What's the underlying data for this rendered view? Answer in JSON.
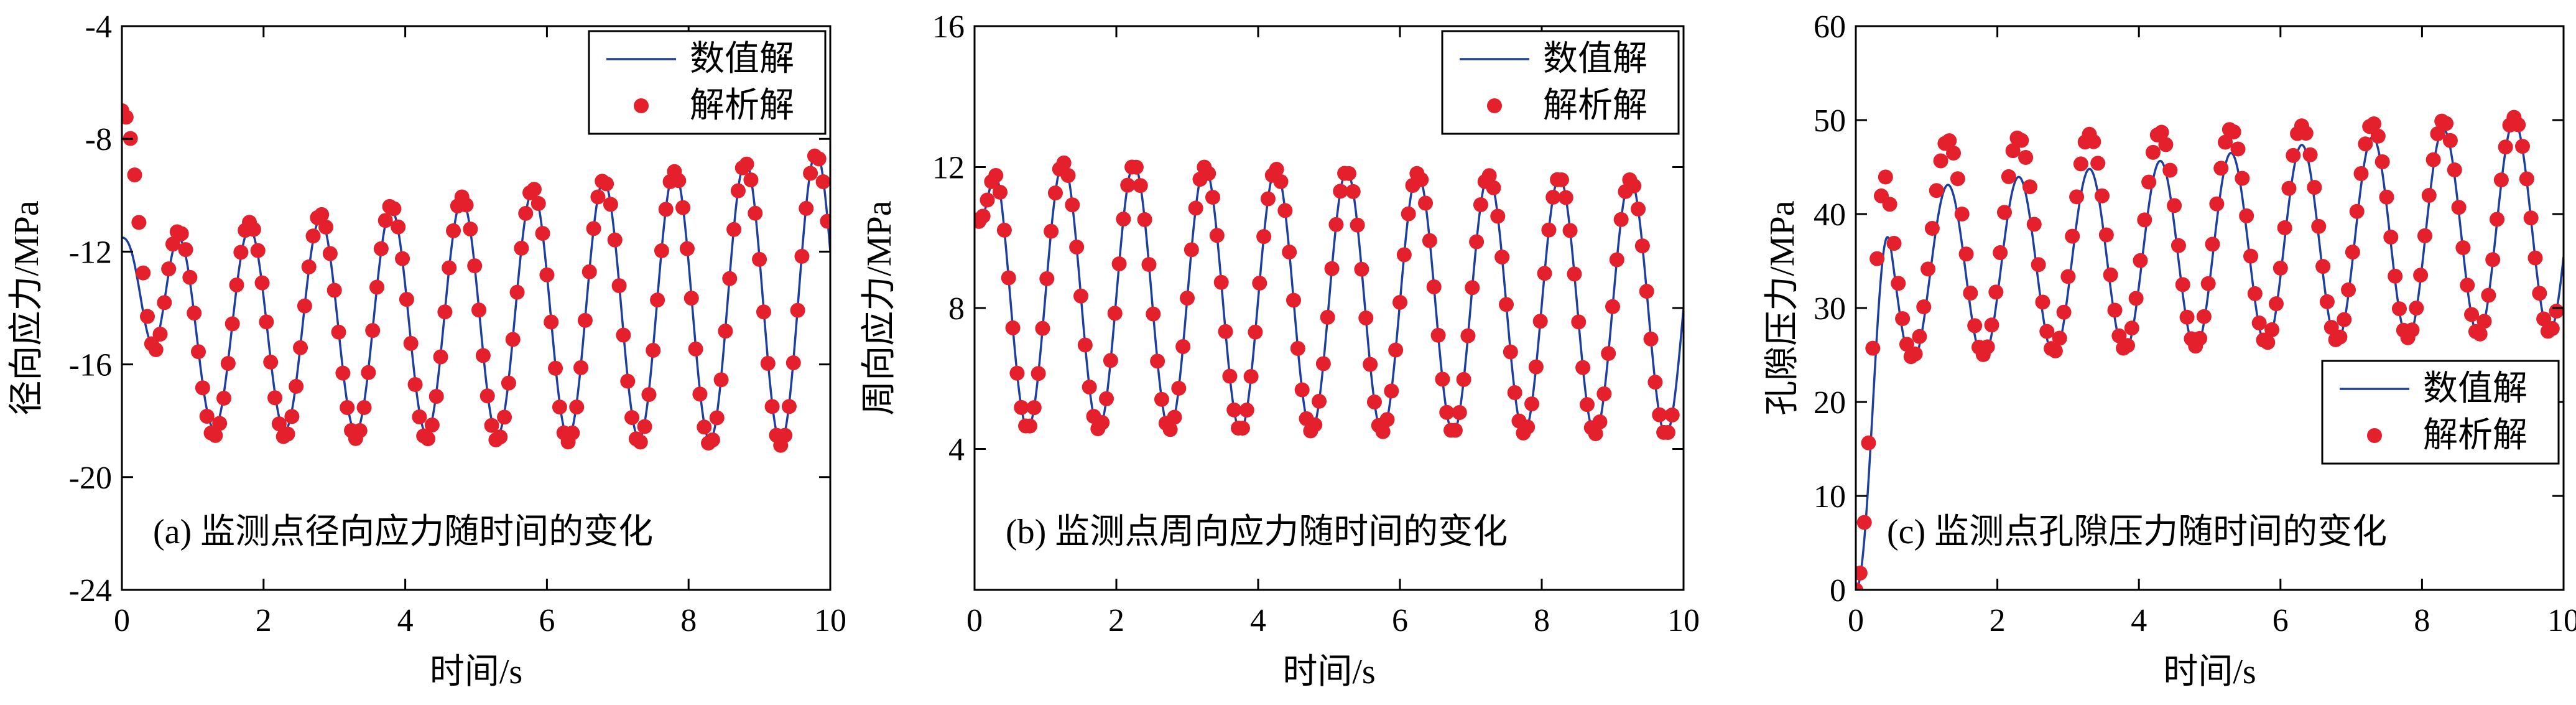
{
  "figure": {
    "legend_line_color": "#1f3f9f",
    "marker_color": "#e3202c"
  },
  "chart_data": [
    {
      "id": "a",
      "type": "line",
      "annotation": "(a) 监测点径向应力随时间的变化",
      "xlabel": "时间/s",
      "ylabel": "径向应力/MPa",
      "xlim": [
        0,
        10
      ],
      "ylim": [
        -24,
        -4
      ],
      "xticks": [
        "0",
        "2",
        "4",
        "6",
        "8",
        "10"
      ],
      "yticks": [
        "-4",
        "-8",
        "-12",
        "-16",
        "-20",
        "-24"
      ],
      "legend": {
        "position": "top-right",
        "entries": [
          "数值解",
          "解析解"
        ]
      },
      "series": [
        {
          "name": "数值解",
          "kind": "line",
          "color": "#1f3f9f",
          "model": {
            "t0": 0.0,
            "initial": -11.5,
            "start_mean": -15.0,
            "start_amp": 3.2,
            "end_mean": -13.6,
            "end_amp": 5.2,
            "period": 1.0,
            "phase_peak_at": 0.8,
            "ramp": 0.7,
            "t_end": 10.0
          }
        },
        {
          "name": "解析解",
          "kind": "scatter",
          "color": "#e3202c",
          "model": {
            "t0": 0.0,
            "initial": -7.0,
            "start_mean": -15.0,
            "start_amp": 3.5,
            "end_mean": -13.7,
            "end_amp": 5.2,
            "period": 1.0,
            "phase_peak_at": 0.8,
            "ramp": 0.6,
            "t_end": 10.0,
            "step": 0.06
          }
        }
      ]
    },
    {
      "id": "b",
      "type": "line",
      "annotation": "(b) 监测点周向应力随时间的变化",
      "xlabel": "时间/s",
      "ylabel": "周向应力/MPa",
      "xlim": [
        0,
        10
      ],
      "ylim": [
        0,
        16
      ],
      "xticks": [
        "0",
        "2",
        "4",
        "6",
        "8",
        "10"
      ],
      "yticks": [
        "4",
        "8",
        "12",
        "16"
      ],
      "legend": {
        "position": "top-right",
        "entries": [
          "数值解",
          "解析解"
        ]
      },
      "series": [
        {
          "name": "数值解",
          "kind": "line",
          "color": "#1f3f9f",
          "model": {
            "t0": 0.0,
            "initial": 10.5,
            "start_mean": 8.4,
            "start_amp": 3.8,
            "end_mean": 8.0,
            "end_amp": 3.6,
            "period": 1.0,
            "phase_peak_at": 0.25,
            "ramp": 0.4,
            "t_end": 10.0
          }
        },
        {
          "name": "解析解",
          "kind": "scatter",
          "color": "#e3202c",
          "model": {
            "t0": 0.0,
            "initial": 10.5,
            "start_mean": 8.4,
            "start_amp": 3.8,
            "end_mean": 8.0,
            "end_amp": 3.6,
            "period": 1.0,
            "phase_peak_at": 0.25,
            "ramp": 0.4,
            "t_end": 9.85,
            "step": 0.06
          }
        }
      ]
    },
    {
      "id": "c",
      "type": "line",
      "annotation": "(c) 监测点孔隙压力随时间的变化",
      "xlabel": "时间/s",
      "ylabel": "孔隙压力/MPa",
      "xlim": [
        0,
        10
      ],
      "ylim": [
        0,
        60
      ],
      "xticks": [
        "0",
        "2",
        "4",
        "6",
        "8",
        "10"
      ],
      "yticks": [
        "10",
        "20",
        "30",
        "40",
        "50",
        "60"
      ],
      "legend": {
        "position": "center-right",
        "entries": [
          "数值解",
          "解析解"
        ]
      },
      "series": [
        {
          "name": "数值解",
          "kind": "line",
          "color": "#1f3f9f",
          "model": {
            "t0": 0.0,
            "initial": 0.0,
            "start_mean": 33.0,
            "start_amp": 9.0,
            "end_mean": 39.0,
            "end_amp": 11.5,
            "period": 1.0,
            "phase_peak_at": 0.3,
            "ramp": 0.5,
            "t_end": 10.0
          }
        },
        {
          "name": "解析解",
          "kind": "scatter",
          "color": "#e3202c",
          "model": {
            "t0": 0.0,
            "initial": 0.0,
            "start_mean": 36.0,
            "start_amp": 11.5,
            "end_mean": 39.0,
            "end_amp": 11.5,
            "period": 1.0,
            "phase_peak_at": 0.3,
            "ramp": 0.45,
            "t_end": 9.95,
            "step": 0.06
          }
        }
      ]
    }
  ]
}
